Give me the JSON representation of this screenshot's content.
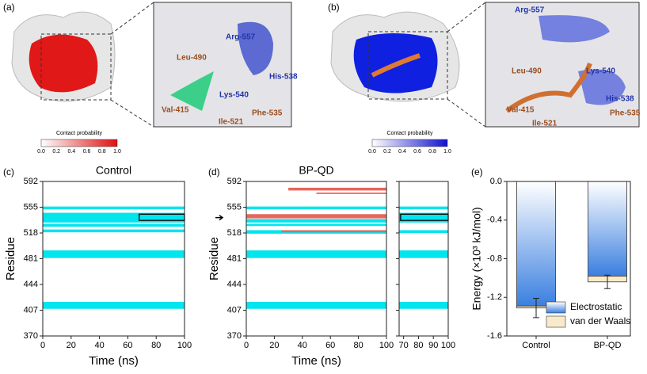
{
  "top_panels": [
    {
      "label": "(a)",
      "residues": [
        "Arg-557",
        "His-538",
        "Leu-490",
        "Lys-540",
        "Val-415",
        "Ile-521",
        "Phe-535"
      ],
      "colorbar": {
        "title": "Contact probability",
        "ticks": [
          "0.0",
          "0.2",
          "0.4",
          "0.6",
          "0.8",
          "1.0"
        ]
      }
    },
    {
      "label": "(b)",
      "residues": [
        "Arg-557",
        "Leu-490",
        "Lys-540",
        "His-538",
        "Val-415",
        "Ile-521",
        "Phe-535"
      ],
      "colorbar": {
        "title": "Contact probability",
        "ticks": [
          "0.0",
          "0.2",
          "0.4",
          "0.6",
          "0.8",
          "1.0"
        ]
      }
    }
  ],
  "chart_data": [
    {
      "type": "raster",
      "panel_label": "(c)",
      "title": "Control",
      "xlabel": "Time (ns)",
      "ylabel": "Residue",
      "xlim": [
        0,
        100
      ],
      "xticks": [
        0,
        20,
        40,
        60,
        80,
        100
      ],
      "ylim": [
        370,
        592
      ],
      "yticks": [
        370,
        407,
        444,
        481,
        518,
        555,
        592
      ],
      "bands": [
        {
          "x": [
            0,
            100
          ],
          "y": [
            409,
            419
          ],
          "color": "#00e5ee"
        },
        {
          "x": [
            0,
            100
          ],
          "y": [
            482,
            493
          ],
          "color": "#00e5ee"
        },
        {
          "x": [
            0,
            100
          ],
          "y": [
            519,
            523
          ],
          "color": "#00e5ee"
        },
        {
          "x": [
            0,
            100
          ],
          "y": [
            527,
            531
          ],
          "color": "#00e5ee"
        },
        {
          "x": [
            0,
            100
          ],
          "y": [
            533,
            547
          ],
          "color": "#00e5ee"
        },
        {
          "x": [
            0,
            100
          ],
          "y": [
            552,
            556
          ],
          "color": "#00e5ee"
        }
      ],
      "highlight": {
        "x": [
          68,
          100
        ],
        "y": [
          536,
          545
        ]
      }
    },
    {
      "type": "raster",
      "panel_label": "(d)",
      "title": "BP-QD",
      "xlabel": "Time (ns)",
      "ylabel": "Residue",
      "xlim": [
        0,
        100
      ],
      "xticks": [
        0,
        20,
        40,
        60,
        80,
        100
      ],
      "ylim": [
        370,
        592
      ],
      "yticks": [
        370,
        407,
        444,
        481,
        518,
        555,
        592
      ],
      "bands": [
        {
          "x": [
            0,
            100
          ],
          "y": [
            409,
            419
          ],
          "color": "#00e5ee"
        },
        {
          "x": [
            0,
            100
          ],
          "y": [
            482,
            493
          ],
          "color": "#00e5ee"
        },
        {
          "x": [
            0,
            100
          ],
          "y": [
            517,
            522
          ],
          "color": "#00e5ee"
        },
        {
          "x": [
            0,
            100
          ],
          "y": [
            528,
            531
          ],
          "color": "#00e5ee"
        },
        {
          "x": [
            0,
            100
          ],
          "y": [
            533,
            538
          ],
          "color": "#00e5ee"
        },
        {
          "x": [
            0,
            100
          ],
          "y": [
            552,
            556
          ],
          "color": "#00e5ee"
        },
        {
          "x": [
            0,
            100
          ],
          "y": [
            539,
            545
          ],
          "color": "#e8665a"
        },
        {
          "x": [
            25,
            100
          ],
          "y": [
            519,
            522
          ],
          "color": "#e8665a"
        },
        {
          "x": [
            30,
            100
          ],
          "y": [
            579,
            583
          ],
          "color": "#e8665a"
        },
        {
          "x": [
            50,
            100
          ],
          "y": [
            574,
            576
          ],
          "color": "#e8665a"
        }
      ],
      "arrow_residue": 540,
      "inset": {
        "xlim": [
          67,
          100
        ],
        "xticks": [
          70,
          80,
          90,
          100
        ],
        "bands": [
          {
            "x": [
              67,
              100
            ],
            "y": [
              409,
              419
            ],
            "color": "#00e5ee"
          },
          {
            "x": [
              67,
              100
            ],
            "y": [
              482,
              493
            ],
            "color": "#00e5ee"
          },
          {
            "x": [
              67,
              100
            ],
            "y": [
              518,
              522
            ],
            "color": "#00e5ee"
          },
          {
            "x": [
              67,
              100
            ],
            "y": [
              533,
              547
            ],
            "color": "#00e5ee"
          },
          {
            "x": [
              67,
              100
            ],
            "y": [
              552,
              556
            ],
            "color": "#00e5ee"
          }
        ],
        "highlight": {
          "x": [
            68,
            100
          ],
          "y": [
            536,
            545
          ]
        }
      }
    },
    {
      "type": "stacked_bar",
      "panel_label": "(e)",
      "ylabel": "Energy (×10³ kJ/mol)",
      "categories": [
        "Control",
        "BP-QD"
      ],
      "ylim": [
        -1.6,
        0
      ],
      "yticks": [
        {
          "value": 0,
          "label": "0.0"
        },
        {
          "value": -0.4,
          "label": "-0.4"
        },
        {
          "value": -0.8,
          "label": "-0.8"
        },
        {
          "value": -1.2,
          "label": "-1.2"
        },
        {
          "value": -1.6,
          "label": "-1.6"
        }
      ],
      "series": [
        {
          "name": "Electrostatic",
          "color": "#3a7fe0",
          "values": [
            -1.29,
            -0.98
          ]
        },
        {
          "name": "van der Waals",
          "color": "#f7ebcc",
          "values": [
            -0.02,
            -0.06
          ]
        }
      ],
      "errors": [
        0.1,
        0.07
      ],
      "legend": "lower right"
    }
  ]
}
